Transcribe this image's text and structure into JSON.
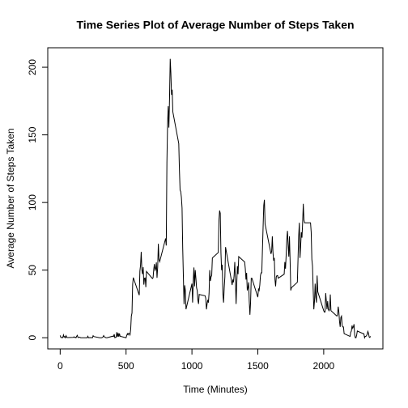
{
  "chart_data": {
    "type": "line",
    "title": "Time Series Plot of Average Number of Steps Taken",
    "x_label": "Time (Minutes)",
    "y_label": "Average Number of Steps Taken",
    "xlim": [
      -94.2,
      2449.2
    ],
    "ylim": [
      -8.25,
      214.4
    ],
    "xticks": [
      0,
      500,
      1000,
      1500,
      2000
    ],
    "yticks": [
      0,
      50,
      100,
      150,
      200
    ],
    "color": "#000000",
    "x": [
      0,
      5,
      10,
      15,
      20,
      25,
      30,
      35,
      40,
      45,
      50,
      55,
      100,
      105,
      110,
      115,
      120,
      125,
      130,
      135,
      140,
      145,
      150,
      155,
      200,
      205,
      210,
      215,
      220,
      225,
      230,
      235,
      240,
      245,
      250,
      255,
      300,
      305,
      310,
      315,
      320,
      325,
      330,
      335,
      340,
      345,
      350,
      355,
      400,
      405,
      410,
      415,
      420,
      425,
      430,
      435,
      440,
      445,
      450,
      455,
      500,
      505,
      510,
      515,
      520,
      525,
      530,
      535,
      540,
      545,
      550,
      555,
      600,
      605,
      610,
      615,
      620,
      625,
      630,
      635,
      640,
      645,
      650,
      655,
      700,
      705,
      710,
      715,
      720,
      725,
      730,
      735,
      740,
      745,
      750,
      755,
      800,
      805,
      810,
      815,
      820,
      825,
      830,
      835,
      840,
      845,
      850,
      855,
      900,
      905,
      910,
      915,
      920,
      925,
      930,
      935,
      940,
      945,
      950,
      955,
      1000,
      1005,
      1010,
      1015,
      1020,
      1025,
      1030,
      1035,
      1040,
      1045,
      1050,
      1055,
      1100,
      1105,
      1110,
      1115,
      1120,
      1125,
      1130,
      1135,
      1140,
      1145,
      1150,
      1155,
      1200,
      1205,
      1210,
      1215,
      1220,
      1225,
      1230,
      1235,
      1240,
      1245,
      1250,
      1255,
      1300,
      1305,
      1310,
      1315,
      1320,
      1325,
      1330,
      1335,
      1340,
      1345,
      1350,
      1355,
      1400,
      1405,
      1410,
      1415,
      1420,
      1425,
      1430,
      1435,
      1440,
      1445,
      1450,
      1455,
      1500,
      1505,
      1510,
      1515,
      1520,
      1525,
      1530,
      1535,
      1540,
      1545,
      1550,
      1555,
      1600,
      1605,
      1610,
      1615,
      1620,
      1625,
      1630,
      1635,
      1640,
      1645,
      1650,
      1655,
      1700,
      1705,
      1710,
      1715,
      1720,
      1725,
      1730,
      1735,
      1740,
      1745,
      1750,
      1755,
      1800,
      1805,
      1810,
      1815,
      1820,
      1825,
      1830,
      1835,
      1840,
      1845,
      1850,
      1855,
      1900,
      1905,
      1910,
      1915,
      1920,
      1925,
      1930,
      1935,
      1940,
      1945,
      1950,
      1955,
      2000,
      2005,
      2010,
      2015,
      2020,
      2025,
      2030,
      2035,
      2040,
      2045,
      2050,
      2055,
      2100,
      2105,
      2110,
      2115,
      2120,
      2125,
      2130,
      2135,
      2140,
      2145,
      2150,
      2155,
      2200,
      2205,
      2210,
      2215,
      2220,
      2225,
      2230,
      2235,
      2240,
      2245,
      2250,
      2255,
      2300,
      2305,
      2310,
      2315,
      2320,
      2325,
      2330,
      2335,
      2340,
      2345,
      2350,
      2355
    ],
    "values": [
      1.7,
      0.3,
      0.1,
      0.2,
      0.1,
      2.1,
      0.5,
      0.9,
      0,
      1.5,
      0.3,
      0.1,
      0.3,
      0.7,
      0.2,
      0.3,
      0,
      1.1,
      1.8,
      0.2,
      0.2,
      0.4,
      0.3,
      0,
      0,
      0,
      1.1,
      0,
      0,
      0.1,
      0,
      0.2,
      0,
      0,
      1.5,
      0.9,
      0,
      0,
      0,
      0,
      0.2,
      0.6,
      1.6,
      0.6,
      0.5,
      0.1,
      0,
      0,
      1.2,
      0.9,
      2.6,
      0,
      0.3,
      0.4,
      4.1,
      0.7,
      3.5,
      0.8,
      3.1,
      1.1,
      0,
      1.6,
      3,
      2.2,
      3.3,
      3,
      2.1,
      6.1,
      16,
      18.3,
      39.5,
      44.5,
      31.5,
      49.3,
      53.8,
      63.5,
      50,
      47.1,
      52.2,
      39.3,
      44,
      44.2,
      37.4,
      49,
      43.8,
      44.4,
      50.5,
      54.5,
      49.9,
      51,
      55.7,
      44.3,
      52.3,
      69.5,
      57.8,
      56.2,
      73.4,
      68.2,
      129.4,
      157.5,
      171.2,
      155.4,
      177.3,
      206.2,
      195.9,
      179.6,
      183.4,
      167,
      143.5,
      124,
      109.1,
      108.1,
      103.7,
      95.9,
      66.2,
      45.2,
      24.8,
      38.8,
      35,
      21.1,
      40,
      26,
      42,
      52,
      38,
      50,
      44,
      37,
      35,
      28,
      25,
      32,
      31,
      29,
      21,
      25,
      28,
      26,
      33,
      50,
      42,
      45,
      46,
      59,
      63,
      87,
      94,
      92,
      63,
      50,
      54,
      32,
      26,
      37,
      45,
      67,
      42,
      39,
      43,
      41,
      46,
      56,
      43,
      25,
      40,
      53,
      47,
      60,
      56,
      51,
      43,
      48,
      35,
      37,
      41,
      27,
      17,
      26,
      44,
      44,
      30,
      36,
      35,
      39,
      46,
      48,
      48,
      65,
      82,
      98,
      102,
      84,
      62,
      64,
      75,
      63,
      57,
      59,
      43,
      38,
      45,
      46,
      46,
      44,
      47,
      56,
      51,
      61,
      73,
      79,
      69,
      60,
      75,
      57,
      35,
      37,
      41,
      58,
      75,
      85,
      59,
      68,
      78,
      74,
      85,
      99,
      87,
      85,
      85,
      78,
      58,
      53,
      36,
      21,
      27,
      40,
      30,
      26,
      46,
      34,
      20,
      19,
      19,
      33,
      27,
      21,
      27,
      21,
      20,
      21,
      32,
      20,
      16,
      17,
      23,
      19,
      12,
      8,
      15,
      16,
      9,
      8,
      8,
      3,
      1,
      4,
      5,
      9,
      7,
      8,
      10,
      2,
      0,
      0,
      2,
      5,
      3,
      3,
      0,
      1,
      1,
      1.6,
      2.6,
      4.7,
      3.3,
      0.6,
      0.2,
      1.1
    ]
  }
}
